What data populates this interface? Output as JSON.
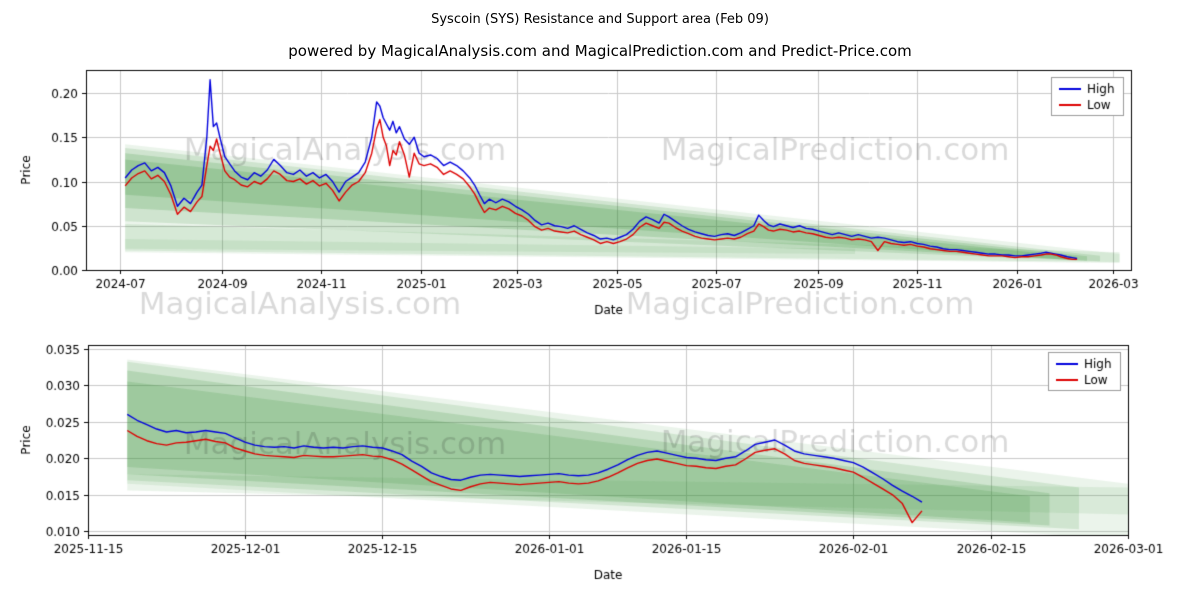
{
  "page": {
    "title": "Syscoin (SYS) Resistance and Support area (Feb 09)",
    "subtitle": "powered by MagicalAnalysis.com and MagicalPrediction.com and Predict-Price.com"
  },
  "colors": {
    "high": "#0000dd",
    "low": "#dd0000",
    "band": "#379137",
    "grid": "#c9c9c9",
    "spine": "#000000",
    "text": "#000000",
    "watermark": "rgba(0,0,0,0.15)",
    "legend_border": "#9a9a9a",
    "legend_bg": "#ffffff"
  },
  "chart_data": [
    {
      "type": "line",
      "xlabel": "Date",
      "ylabel": "Price",
      "x_unit": "days since 2024-07-01",
      "xlim": [
        -21,
        619
      ],
      "ylim": [
        0,
        0.226
      ],
      "grid": true,
      "legend_position": "upper right",
      "xticks": [
        {
          "d": 0,
          "label": "2024-07"
        },
        {
          "d": 62,
          "label": "2024-09"
        },
        {
          "d": 123,
          "label": "2024-11"
        },
        {
          "d": 184,
          "label": "2025-01"
        },
        {
          "d": 243,
          "label": "2025-03"
        },
        {
          "d": 304,
          "label": "2025-05"
        },
        {
          "d": 365,
          "label": "2025-07"
        },
        {
          "d": 427,
          "label": "2025-09"
        },
        {
          "d": 488,
          "label": "2025-11"
        },
        {
          "d": 549,
          "label": "2026-01"
        },
        {
          "d": 608,
          "label": "2026-03"
        }
      ],
      "yticks": [
        {
          "v": 0.0,
          "label": "0.00"
        },
        {
          "v": 0.05,
          "label": "0.05"
        },
        {
          "v": 0.1,
          "label": "0.10"
        },
        {
          "v": 0.15,
          "label": "0.15"
        },
        {
          "v": 0.2,
          "label": "0.20"
        }
      ],
      "legend": [
        {
          "name": "High",
          "color": "#0000dd"
        },
        {
          "name": "Low",
          "color": "#dd0000"
        }
      ],
      "watermarks": [
        "MagicalAnalysis.com",
        "MagicalPrediction.com"
      ],
      "bands": [
        [
          3,
          0.142,
          0.02,
          612,
          0.018,
          0.008,
          0.1
        ],
        [
          3,
          0.138,
          0.055,
          600,
          0.016,
          0.01,
          0.16
        ],
        [
          3,
          0.132,
          0.07,
          592,
          0.0155,
          0.0105,
          0.2
        ],
        [
          3,
          0.125,
          0.085,
          585,
          0.015,
          0.011,
          0.2
        ],
        [
          3,
          0.052,
          0.022,
          612,
          0.02,
          0.009,
          0.12
        ],
        [
          3,
          0.035,
          0.024,
          450,
          0.024,
          0.018,
          0.1
        ]
      ],
      "series": {
        "x": [
          3,
          7,
          11,
          15,
          19,
          23,
          27,
          31,
          35,
          39,
          43,
          47,
          50,
          53,
          55,
          57,
          59,
          61,
          64,
          67,
          70,
          74,
          78,
          82,
          86,
          90,
          94,
          98,
          102,
          106,
          110,
          114,
          118,
          122,
          126,
          130,
          134,
          138,
          142,
          146,
          150,
          154,
          157,
          159,
          161,
          163,
          165,
          167,
          169,
          171,
          174,
          177,
          180,
          183,
          186,
          190,
          194,
          198,
          202,
          206,
          210,
          214,
          217,
          220,
          223,
          226,
          230,
          234,
          238,
          242,
          246,
          250,
          254,
          258,
          262,
          266,
          270,
          274,
          278,
          282,
          286,
          290,
          294,
          298,
          302,
          306,
          310,
          314,
          318,
          322,
          326,
          330,
          333,
          336,
          340,
          344,
          348,
          352,
          356,
          360,
          364,
          368,
          372,
          376,
          380,
          384,
          388,
          391,
          394,
          397,
          400,
          404,
          408,
          412,
          416,
          420,
          424,
          428,
          432,
          436,
          440,
          444,
          448,
          452,
          456,
          460,
          464,
          468,
          472,
          476,
          480,
          484,
          488,
          492,
          496,
          500,
          504,
          508,
          512,
          516,
          520,
          524,
          528,
          532,
          536,
          540,
          544,
          548,
          552,
          556,
          560,
          564,
          567,
          570,
          573,
          576,
          580,
          583,
          586
        ],
        "high": [
          0.104,
          0.113,
          0.118,
          0.121,
          0.112,
          0.116,
          0.11,
          0.095,
          0.072,
          0.081,
          0.075,
          0.088,
          0.096,
          0.15,
          0.215,
          0.162,
          0.166,
          0.15,
          0.128,
          0.12,
          0.112,
          0.105,
          0.102,
          0.11,
          0.106,
          0.113,
          0.125,
          0.118,
          0.11,
          0.108,
          0.113,
          0.106,
          0.11,
          0.104,
          0.108,
          0.1,
          0.088,
          0.1,
          0.105,
          0.11,
          0.122,
          0.15,
          0.19,
          0.185,
          0.172,
          0.165,
          0.158,
          0.168,
          0.155,
          0.162,
          0.148,
          0.142,
          0.15,
          0.132,
          0.128,
          0.13,
          0.126,
          0.118,
          0.122,
          0.118,
          0.112,
          0.104,
          0.096,
          0.085,
          0.075,
          0.08,
          0.076,
          0.08,
          0.077,
          0.072,
          0.068,
          0.063,
          0.056,
          0.051,
          0.053,
          0.05,
          0.049,
          0.047,
          0.05,
          0.046,
          0.042,
          0.039,
          0.035,
          0.036,
          0.034,
          0.037,
          0.04,
          0.046,
          0.055,
          0.06,
          0.057,
          0.053,
          0.063,
          0.06,
          0.055,
          0.05,
          0.046,
          0.043,
          0.041,
          0.039,
          0.038,
          0.04,
          0.041,
          0.039,
          0.042,
          0.046,
          0.05,
          0.062,
          0.056,
          0.051,
          0.049,
          0.052,
          0.05,
          0.048,
          0.05,
          0.047,
          0.046,
          0.044,
          0.042,
          0.04,
          0.042,
          0.04,
          0.038,
          0.04,
          0.038,
          0.036,
          0.037,
          0.036,
          0.034,
          0.032,
          0.031,
          0.032,
          0.03,
          0.029,
          0.027,
          0.026,
          0.024,
          0.023,
          0.023,
          0.022,
          0.021,
          0.02,
          0.019,
          0.018,
          0.018,
          0.017,
          0.017,
          0.016,
          0.016,
          0.017,
          0.018,
          0.019,
          0.02,
          0.019,
          0.018,
          0.017,
          0.015,
          0.014,
          0.013
        ],
        "low": [
          0.095,
          0.104,
          0.109,
          0.112,
          0.103,
          0.107,
          0.1,
          0.085,
          0.063,
          0.071,
          0.066,
          0.077,
          0.083,
          0.118,
          0.14,
          0.135,
          0.148,
          0.133,
          0.112,
          0.105,
          0.102,
          0.096,
          0.094,
          0.1,
          0.097,
          0.103,
          0.112,
          0.108,
          0.101,
          0.1,
          0.103,
          0.097,
          0.101,
          0.095,
          0.098,
          0.09,
          0.078,
          0.088,
          0.096,
          0.1,
          0.11,
          0.132,
          0.16,
          0.17,
          0.15,
          0.14,
          0.118,
          0.135,
          0.13,
          0.145,
          0.13,
          0.105,
          0.132,
          0.12,
          0.118,
          0.12,
          0.116,
          0.108,
          0.112,
          0.108,
          0.103,
          0.094,
          0.086,
          0.075,
          0.065,
          0.07,
          0.068,
          0.072,
          0.069,
          0.064,
          0.061,
          0.056,
          0.049,
          0.045,
          0.047,
          0.044,
          0.043,
          0.042,
          0.044,
          0.04,
          0.037,
          0.034,
          0.03,
          0.032,
          0.03,
          0.032,
          0.035,
          0.04,
          0.048,
          0.053,
          0.05,
          0.047,
          0.054,
          0.053,
          0.048,
          0.044,
          0.041,
          0.038,
          0.036,
          0.035,
          0.034,
          0.035,
          0.036,
          0.035,
          0.037,
          0.041,
          0.044,
          0.052,
          0.049,
          0.045,
          0.044,
          0.046,
          0.045,
          0.043,
          0.044,
          0.042,
          0.041,
          0.039,
          0.037,
          0.036,
          0.037,
          0.036,
          0.034,
          0.035,
          0.034,
          0.032,
          0.022,
          0.032,
          0.03,
          0.029,
          0.028,
          0.029,
          0.027,
          0.026,
          0.024,
          0.023,
          0.022,
          0.021,
          0.021,
          0.02,
          0.019,
          0.018,
          0.017,
          0.016,
          0.016,
          0.016,
          0.015,
          0.014,
          0.015,
          0.015,
          0.016,
          0.017,
          0.018,
          0.018,
          0.017,
          0.015,
          0.013,
          0.012,
          0.012
        ]
      }
    },
    {
      "type": "line",
      "xlabel": "Date",
      "ylabel": "Price",
      "x_unit": "days since 2025-11-15",
      "xlim": [
        0,
        106
      ],
      "ylim": [
        0.0095,
        0.0355
      ],
      "grid": true,
      "legend_position": "upper right",
      "xticks": [
        {
          "d": 0,
          "label": "2025-11-15"
        },
        {
          "d": 16,
          "label": "2025-12-01"
        },
        {
          "d": 30,
          "label": "2025-12-15"
        },
        {
          "d": 47,
          "label": "2026-01-01"
        },
        {
          "d": 61,
          "label": "2026-01-15"
        },
        {
          "d": 78,
          "label": "2026-02-01"
        },
        {
          "d": 92,
          "label": "2026-02-15"
        },
        {
          "d": 106,
          "label": "2026-03-01"
        }
      ],
      "yticks": [
        {
          "v": 0.01,
          "label": "0.010"
        },
        {
          "v": 0.015,
          "label": "0.015"
        },
        {
          "v": 0.02,
          "label": "0.020"
        },
        {
          "v": 0.025,
          "label": "0.025"
        },
        {
          "v": 0.03,
          "label": "0.030"
        },
        {
          "v": 0.035,
          "label": "0.035"
        }
      ],
      "legend": [
        {
          "name": "High",
          "color": "#0000dd"
        },
        {
          "name": "Low",
          "color": "#dd0000"
        }
      ],
      "watermarks": [
        "MagicalAnalysis.com",
        "MagicalPrediction.com"
      ],
      "bands": [
        [
          4,
          0.0335,
          0.0165,
          106,
          0.0165,
          0.009,
          0.1
        ],
        [
          4,
          0.0332,
          0.017,
          101,
          0.016,
          0.0103,
          0.15
        ],
        [
          4,
          0.032,
          0.0178,
          98,
          0.0152,
          0.0108,
          0.18
        ],
        [
          4,
          0.0305,
          0.0188,
          96,
          0.0148,
          0.0112,
          0.18
        ],
        [
          4,
          0.0178,
          0.0156,
          106,
          0.016,
          0.0123,
          0.1
        ]
      ],
      "series": {
        "x": [
          4,
          5,
          6,
          7,
          8,
          9,
          10,
          11,
          12,
          13,
          14,
          15,
          16,
          17,
          18,
          19,
          20,
          21,
          22,
          23,
          24,
          25,
          26,
          27,
          28,
          29,
          30,
          31,
          32,
          33,
          34,
          35,
          36,
          37,
          38,
          39,
          40,
          41,
          42,
          43,
          44,
          45,
          46,
          47,
          48,
          49,
          50,
          51,
          52,
          53,
          54,
          55,
          56,
          57,
          58,
          59,
          60,
          61,
          62,
          63,
          64,
          65,
          66,
          67,
          68,
          69,
          70,
          71,
          72,
          73,
          74,
          75,
          76,
          77,
          78,
          79,
          80,
          81,
          82,
          83,
          84,
          85
        ],
        "high": [
          0.026,
          0.0252,
          0.0246,
          0.024,
          0.0236,
          0.0238,
          0.0235,
          0.0236,
          0.0238,
          0.0236,
          0.0234,
          0.0228,
          0.0222,
          0.0218,
          0.0216,
          0.0215,
          0.0216,
          0.0214,
          0.0217,
          0.0215,
          0.0214,
          0.0215,
          0.0214,
          0.0216,
          0.0217,
          0.0215,
          0.0214,
          0.021,
          0.0205,
          0.0196,
          0.0189,
          0.018,
          0.0175,
          0.0171,
          0.017,
          0.0174,
          0.0177,
          0.0178,
          0.0177,
          0.0176,
          0.0175,
          0.0176,
          0.0177,
          0.0178,
          0.0179,
          0.0177,
          0.0176,
          0.0177,
          0.018,
          0.0185,
          0.0191,
          0.0198,
          0.0204,
          0.0208,
          0.021,
          0.0207,
          0.0204,
          0.0201,
          0.02,
          0.0198,
          0.0197,
          0.02,
          0.0202,
          0.021,
          0.0219,
          0.0222,
          0.0225,
          0.0218,
          0.021,
          0.0206,
          0.0204,
          0.0202,
          0.02,
          0.0197,
          0.0194,
          0.0188,
          0.018,
          0.0172,
          0.0163,
          0.0155,
          0.0148,
          0.014
        ],
        "low": [
          0.0238,
          0.023,
          0.0224,
          0.022,
          0.0218,
          0.0221,
          0.0222,
          0.0224,
          0.0226,
          0.0223,
          0.0221,
          0.0214,
          0.021,
          0.0206,
          0.0204,
          0.0203,
          0.0202,
          0.0201,
          0.0204,
          0.0203,
          0.0202,
          0.0202,
          0.0203,
          0.0204,
          0.0205,
          0.0203,
          0.0202,
          0.0198,
          0.0192,
          0.0184,
          0.0176,
          0.0168,
          0.0163,
          0.0158,
          0.0156,
          0.0161,
          0.0165,
          0.0167,
          0.0166,
          0.0165,
          0.0164,
          0.0165,
          0.0166,
          0.0167,
          0.0168,
          0.0166,
          0.0165,
          0.0166,
          0.0169,
          0.0174,
          0.018,
          0.0187,
          0.0193,
          0.0197,
          0.0199,
          0.0196,
          0.0193,
          0.019,
          0.0189,
          0.0187,
          0.0186,
          0.0189,
          0.0191,
          0.0199,
          0.0208,
          0.0211,
          0.0213,
          0.0206,
          0.0197,
          0.0193,
          0.0191,
          0.0189,
          0.0187,
          0.0184,
          0.0181,
          0.0174,
          0.0166,
          0.0158,
          0.015,
          0.0138,
          0.0112,
          0.0128
        ]
      }
    }
  ]
}
